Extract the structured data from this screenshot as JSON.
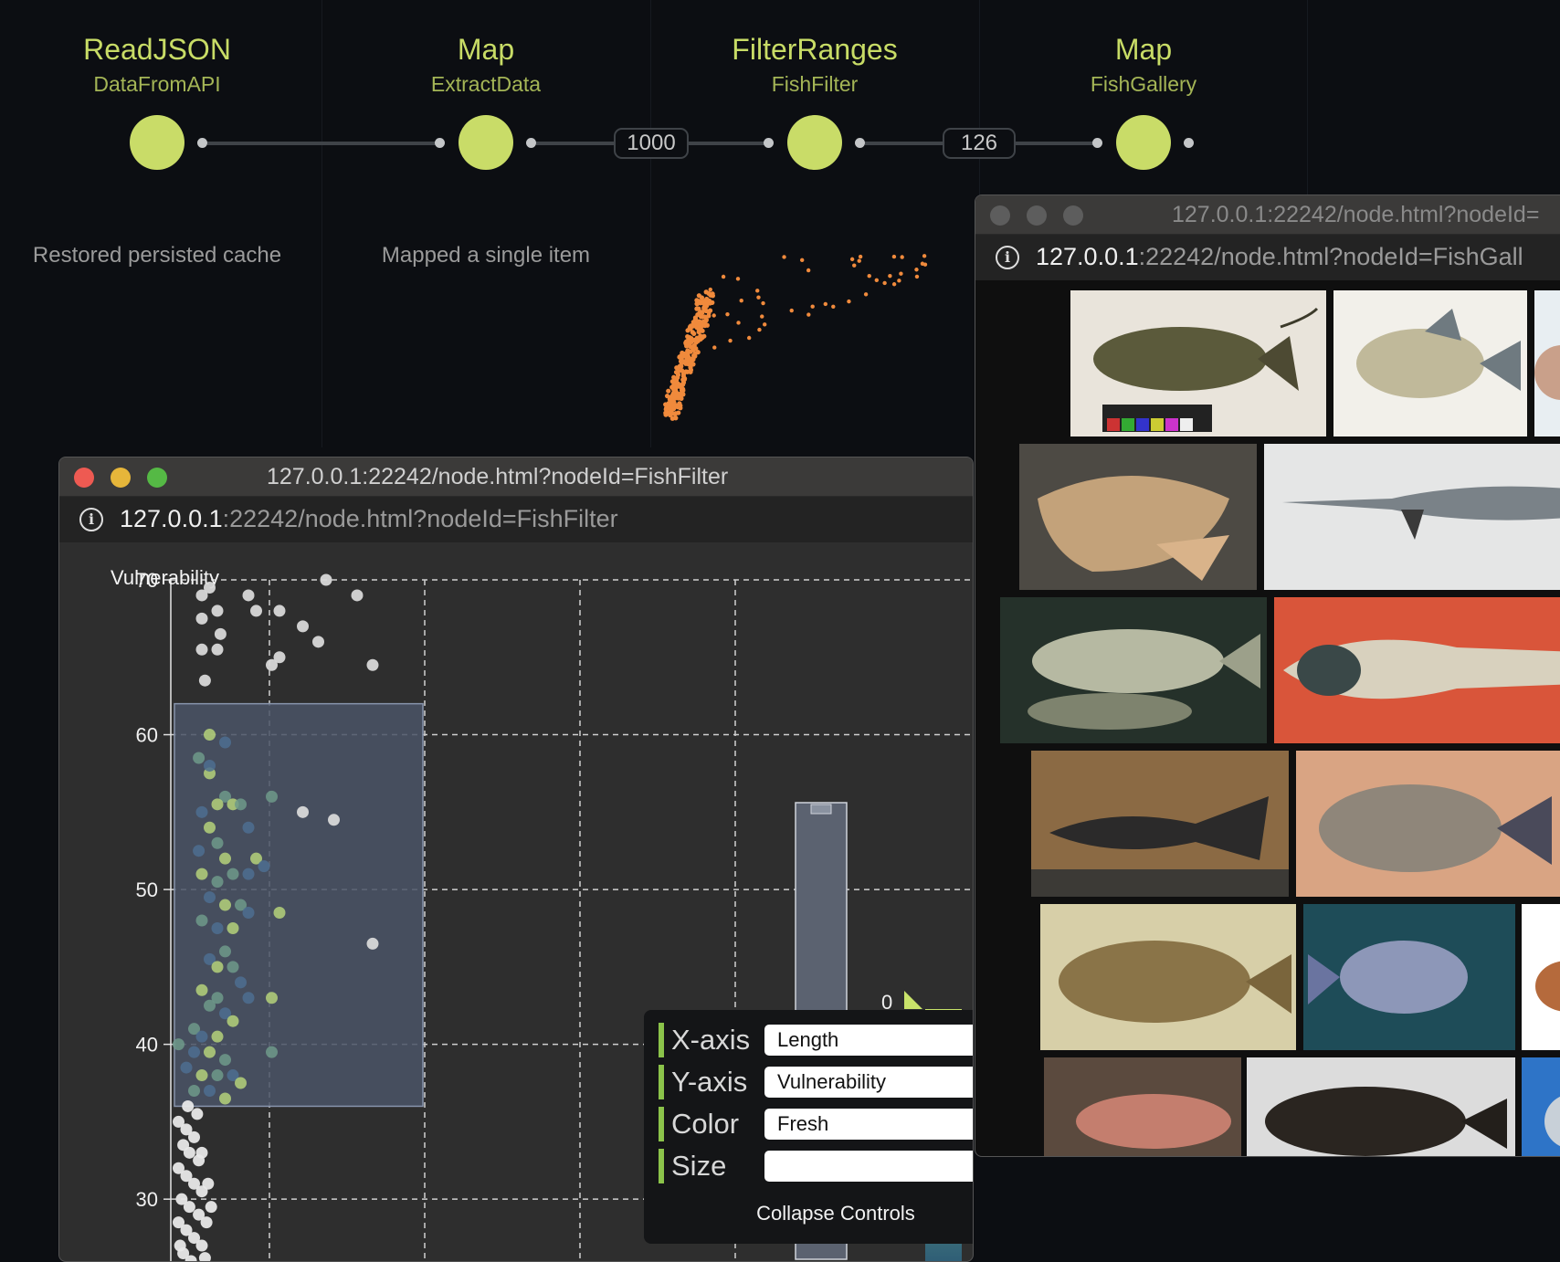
{
  "pipeline": {
    "nodes": [
      {
        "type": "ReadJSON",
        "name": "DataFromAPI",
        "status": "Restored persisted cache"
      },
      {
        "type": "Map",
        "name": "ExtractData",
        "status": "Mapped a single item"
      },
      {
        "type": "FilterRanges",
        "name": "FishFilter",
        "status": ""
      },
      {
        "type": "Map",
        "name": "FishGallery",
        "status": ""
      }
    ],
    "edges": [
      {
        "count": "1000"
      },
      {
        "count": "126"
      }
    ]
  },
  "filter_window": {
    "title": "127.0.0.1:22242/node.html?nodeId=FishFilter",
    "url_host": "127.0.0.1",
    "url_rest": ":22242/node.html?nodeId=FishFilter",
    "controls": {
      "x_axis": {
        "label": "X-axis",
        "value": "Length"
      },
      "y_axis": {
        "label": "Y-axis",
        "value": "Vulnerability"
      },
      "color": {
        "label": "Color",
        "value": "Fresh"
      },
      "size": {
        "label": "Size",
        "value": ""
      },
      "collapse_label": "Collapse Controls"
    },
    "legend_label": "0"
  },
  "gallery_window": {
    "title": "127.0.0.1:22242/node.html?nodeId=",
    "url_host": "127.0.0.1",
    "url_rest": ":22242/node.html?nodeId=FishGall"
  },
  "colors": {
    "node": "#c9dc68",
    "accent_orange": "#f0932b",
    "selection_fill": "#4a5466",
    "point_inactive": "#d8d8d8",
    "point_selected": "#b5d27a"
  },
  "chart_data": {
    "type": "scatter",
    "title": "",
    "xlabel": "",
    "ylabel": "Vulnerability",
    "ylim": [
      26,
      70
    ],
    "y_ticks": [
      70,
      60,
      50,
      40,
      30
    ],
    "grid": true,
    "selection": {
      "y_range": [
        36,
        62
      ]
    },
    "series": [
      {
        "name": "",
        "points": [
          [
            2,
            69
          ],
          [
            2.5,
            69.5
          ],
          [
            3,
            68
          ],
          [
            2,
            67.5
          ],
          [
            3.2,
            66.5
          ],
          [
            2,
            65.5
          ],
          [
            3,
            65.5
          ],
          [
            2.2,
            63.5
          ],
          [
            5,
            69
          ],
          [
            5.5,
            68
          ],
          [
            7,
            68
          ],
          [
            8.5,
            67
          ],
          [
            9.5,
            66
          ],
          [
            6.5,
            64.5
          ],
          [
            7,
            65
          ],
          [
            12,
            69
          ],
          [
            13,
            64.5
          ],
          [
            10,
            70
          ],
          [
            8.5,
            55
          ],
          [
            10.5,
            54.5
          ],
          [
            13,
            46.5
          ]
        ]
      },
      {
        "name": "",
        "points": [
          [
            2.5,
            60
          ],
          [
            1.8,
            58.5
          ],
          [
            3.5,
            59.5
          ],
          [
            2.5,
            57.5
          ],
          [
            3.5,
            56
          ],
          [
            2,
            55
          ],
          [
            4,
            55.5
          ],
          [
            4.5,
            55.5
          ],
          [
            5,
            54
          ],
          [
            2.5,
            54
          ],
          [
            3,
            53
          ],
          [
            1.8,
            52.5
          ],
          [
            3.5,
            52
          ],
          [
            4,
            51
          ],
          [
            5,
            51
          ],
          [
            5.5,
            52
          ],
          [
            6.5,
            56
          ],
          [
            6,
            51.5
          ],
          [
            2,
            51
          ],
          [
            3,
            50.5
          ],
          [
            2.5,
            49.5
          ],
          [
            3.5,
            49
          ],
          [
            4.5,
            49
          ],
          [
            5,
            48.5
          ],
          [
            7,
            48.5
          ],
          [
            2,
            48
          ],
          [
            3,
            47.5
          ],
          [
            4,
            47.5
          ],
          [
            3.5,
            46
          ],
          [
            2.5,
            45.5
          ],
          [
            3,
            45
          ],
          [
            4,
            45
          ],
          [
            4.5,
            44
          ],
          [
            2,
            43.5
          ],
          [
            3,
            43
          ],
          [
            5,
            43
          ],
          [
            6.5,
            43
          ],
          [
            2.5,
            42.5
          ],
          [
            3.5,
            42
          ],
          [
            4,
            41.5
          ],
          [
            1.5,
            41
          ],
          [
            2,
            40.5
          ],
          [
            3,
            40.5
          ],
          [
            0.5,
            40
          ],
          [
            1.5,
            39.5
          ],
          [
            2.5,
            39.5
          ],
          [
            3.5,
            39
          ],
          [
            1,
            38.5
          ],
          [
            2,
            38
          ],
          [
            3,
            38
          ],
          [
            4,
            38
          ],
          [
            4.5,
            37.5
          ],
          [
            1.5,
            37
          ],
          [
            2.5,
            37
          ],
          [
            3.5,
            36.5
          ],
          [
            6.5,
            39.5
          ],
          [
            2.5,
            58
          ],
          [
            3,
            55.5
          ]
        ]
      },
      {
        "name": "",
        "points": [
          [
            0.5,
            35
          ],
          [
            1,
            34.5
          ],
          [
            1.5,
            34
          ],
          [
            0.8,
            33.5
          ],
          [
            1.2,
            33
          ],
          [
            1.8,
            32.5
          ],
          [
            0.5,
            32
          ],
          [
            1,
            31.5
          ],
          [
            1.5,
            31
          ],
          [
            2,
            30.5
          ],
          [
            0.7,
            30
          ],
          [
            1.2,
            29.5
          ],
          [
            1.8,
            29
          ],
          [
            0.5,
            28.5
          ],
          [
            1,
            28
          ],
          [
            1.5,
            27.5
          ],
          [
            2,
            27
          ],
          [
            0.8,
            26.5
          ],
          [
            1.3,
            26
          ],
          [
            2.3,
            28.5
          ],
          [
            2,
            33
          ],
          [
            2.4,
            31
          ],
          [
            1.7,
            35.5
          ],
          [
            0.6,
            27
          ],
          [
            2.6,
            29.5
          ],
          [
            1.1,
            36
          ],
          [
            2.2,
            26.2
          ]
        ]
      }
    ],
    "legend": {
      "label": "0"
    }
  }
}
